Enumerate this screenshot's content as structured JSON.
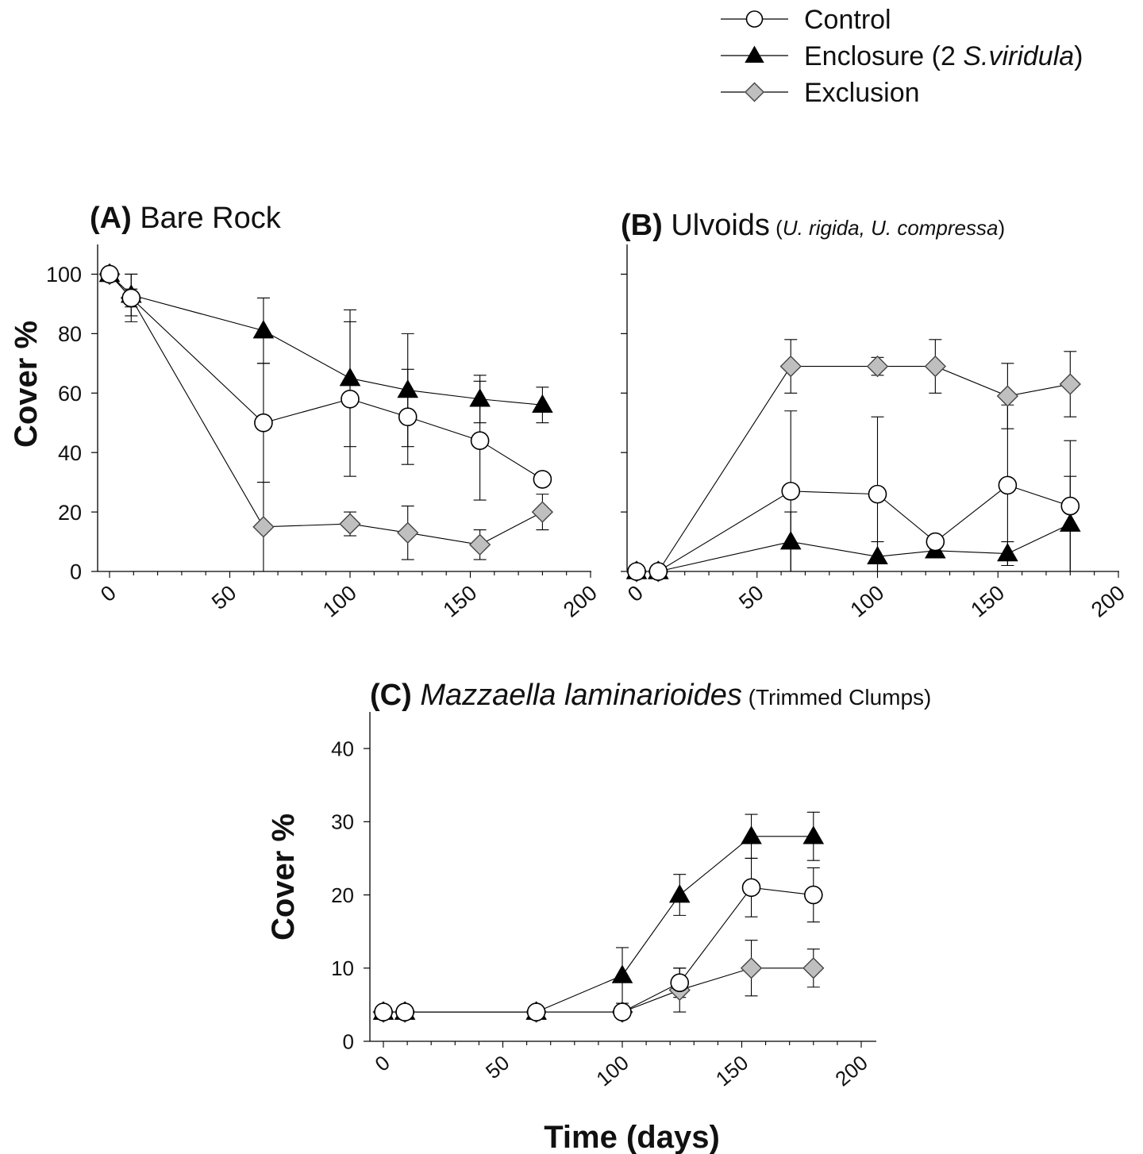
{
  "legend": {
    "position": "top-right",
    "items": [
      {
        "series": "Control",
        "parts": [
          {
            "text": "Control",
            "italic": false
          }
        ]
      },
      {
        "series": "Enclosure",
        "parts": [
          {
            "text": "Enclosure (2 ",
            "italic": false
          },
          {
            "text": "S.viridula",
            "italic": true
          },
          {
            "text": ")",
            "italic": false
          }
        ]
      },
      {
        "series": "Exclusion",
        "parts": [
          {
            "text": "Exclusion",
            "italic": false
          }
        ]
      }
    ]
  },
  "shared_labels": {
    "ylabel_top": "Cover %",
    "ylabel_bottom": "Cover %",
    "xlabel": "Time (days)"
  },
  "series_styles": {
    "Control": {
      "marker": "circle",
      "fill": "#ffffff"
    },
    "Enclosure": {
      "marker": "triangle",
      "fill": "#000000"
    },
    "Exclusion": {
      "marker": "diamond",
      "fill": "#bfbfbf"
    }
  },
  "chart_data": [
    {
      "type": "line",
      "panel_label": "(A)",
      "title_parts": [
        {
          "text": "Bare Rock",
          "italic": false,
          "size": "large"
        }
      ],
      "xlim": [
        0,
        200
      ],
      "ylim": [
        0,
        110
      ],
      "xticks": [
        0,
        50,
        100,
        150,
        200
      ],
      "yticks": [
        0,
        20,
        40,
        60,
        80,
        100
      ],
      "ytick_labels_shown": true,
      "grid": false,
      "x": [
        0,
        9,
        64,
        100,
        124,
        154,
        180
      ],
      "series": [
        {
          "name": "Control",
          "values": [
            100,
            92,
            50,
            58,
            52,
            44,
            31
          ],
          "err": [
            0,
            3,
            20,
            26,
            16,
            20,
            0
          ]
        },
        {
          "name": "Enclosure",
          "values": [
            100,
            93,
            81,
            65,
            61,
            58,
            56
          ],
          "err": [
            0,
            7,
            11,
            23,
            19,
            8,
            6
          ]
        },
        {
          "name": "Exclusion",
          "values": [
            100,
            92,
            15,
            16,
            13,
            9,
            20
          ],
          "err": [
            0,
            8,
            15,
            4,
            9,
            5,
            6
          ]
        }
      ]
    },
    {
      "type": "line",
      "panel_label": "(B)",
      "title_parts": [
        {
          "text": "Ulvoids",
          "italic": false,
          "size": "large"
        },
        {
          "text": " (",
          "italic": false,
          "size": "small"
        },
        {
          "text": "U. rigida, U. compressa",
          "italic": true,
          "size": "small"
        },
        {
          "text": ")",
          "italic": false,
          "size": "small"
        }
      ],
      "xlim": [
        0,
        200
      ],
      "ylim": [
        0,
        110
      ],
      "xticks": [
        0,
        50,
        100,
        150,
        200
      ],
      "yticks": [
        0,
        20,
        40,
        60,
        80,
        100
      ],
      "ytick_labels_shown": false,
      "grid": false,
      "x": [
        0,
        9,
        64,
        100,
        124,
        154,
        180
      ],
      "series": [
        {
          "name": "Control",
          "values": [
            0,
            0,
            27,
            26,
            10,
            29,
            22
          ],
          "err": [
            0,
            0,
            27,
            26,
            2,
            27,
            22
          ]
        },
        {
          "name": "Enclosure",
          "values": [
            0,
            0,
            10,
            5,
            7,
            6,
            16
          ],
          "err": [
            0,
            0,
            10,
            5,
            2,
            4,
            16
          ]
        },
        {
          "name": "Exclusion",
          "values": [
            0,
            0,
            69,
            69,
            69,
            59,
            63
          ],
          "err": [
            0,
            0,
            9,
            3,
            9,
            11,
            11
          ]
        }
      ]
    },
    {
      "type": "line",
      "panel_label": "(C)",
      "title_parts": [
        {
          "text": "Mazzaella laminarioides",
          "italic": true,
          "size": "large"
        },
        {
          "text": " (Trimmed Clumps)",
          "italic": false,
          "size": "small"
        }
      ],
      "xlim": [
        0,
        200
      ],
      "ylim": [
        0,
        45
      ],
      "xticks": [
        0,
        50,
        100,
        150,
        200
      ],
      "yticks": [
        0,
        10,
        20,
        30,
        40
      ],
      "ytick_labels_shown": true,
      "grid": false,
      "x": [
        0,
        9,
        64,
        100,
        124,
        154,
        180
      ],
      "series": [
        {
          "name": "Control",
          "values": [
            4,
            4,
            4,
            4,
            8,
            21,
            20
          ],
          "err": [
            0,
            0,
            0,
            0,
            2,
            4,
            3.7
          ]
        },
        {
          "name": "Enclosure",
          "values": [
            4,
            4,
            4,
            9,
            20,
            28,
            28
          ],
          "err": [
            0,
            0,
            0,
            3.8,
            2.8,
            3,
            3.3
          ]
        },
        {
          "name": "Exclusion",
          "values": [
            4,
            4,
            4,
            4,
            7,
            10,
            10
          ],
          "err": [
            0,
            0,
            0,
            0,
            3,
            3.8,
            2.6
          ]
        }
      ]
    }
  ]
}
